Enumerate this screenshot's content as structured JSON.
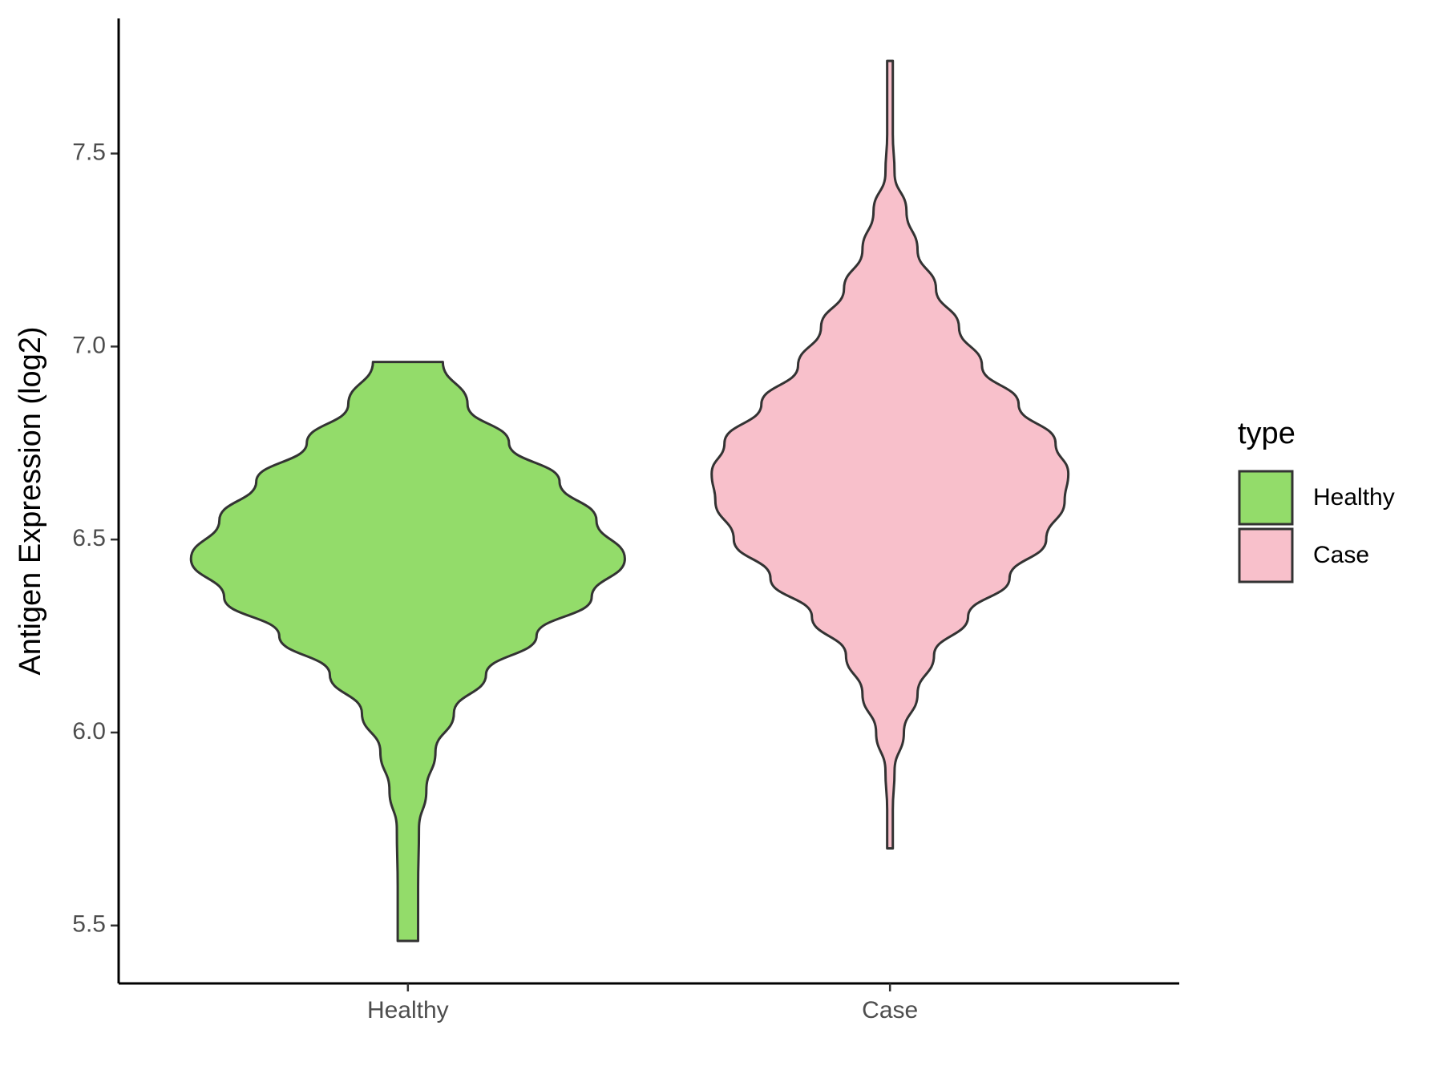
{
  "chart_data": {
    "type": "violin",
    "y_label": "Antigen Expression (log2)",
    "categories": [
      "Healthy",
      "Case"
    ],
    "ylim": [
      5.35,
      7.85
    ],
    "yticks": [
      5.5,
      {
        "value": 6,
        "label": "6.0"
      },
      6.5,
      {
        "value": 7,
        "label": "7.0"
      },
      7.5
    ],
    "legend_title": "type",
    "legend_position": "right",
    "series": [
      {
        "name": "Healthy",
        "color": "#93dc6a",
        "y": [
          5.46,
          5.6,
          5.75,
          5.85,
          5.95,
          6.05,
          6.15,
          6.25,
          6.35,
          6.45,
          6.55,
          6.65,
          6.75,
          6.85,
          6.96
        ],
        "density": [
          0.047,
          0.047,
          0.051,
          0.085,
          0.127,
          0.212,
          0.36,
          0.593,
          0.847,
          1,
          0.869,
          0.699,
          0.466,
          0.275,
          0.161
        ]
      },
      {
        "name": "Case",
        "color": "#f8c0cb",
        "y": [
          5.7,
          5.8,
          5.9,
          6.0,
          6.1,
          6.2,
          6.3,
          6.4,
          6.5,
          6.6,
          6.67,
          6.75,
          6.85,
          6.95,
          7.05,
          7.15,
          7.25,
          7.35,
          7.45,
          7.55,
          7.74
        ],
        "density": [
          0.013,
          0.013,
          0.021,
          0.064,
          0.127,
          0.203,
          0.36,
          0.551,
          0.72,
          0.805,
          0.822,
          0.763,
          0.593,
          0.424,
          0.318,
          0.212,
          0.127,
          0.076,
          0.021,
          0.013,
          0.013
        ]
      }
    ]
  }
}
